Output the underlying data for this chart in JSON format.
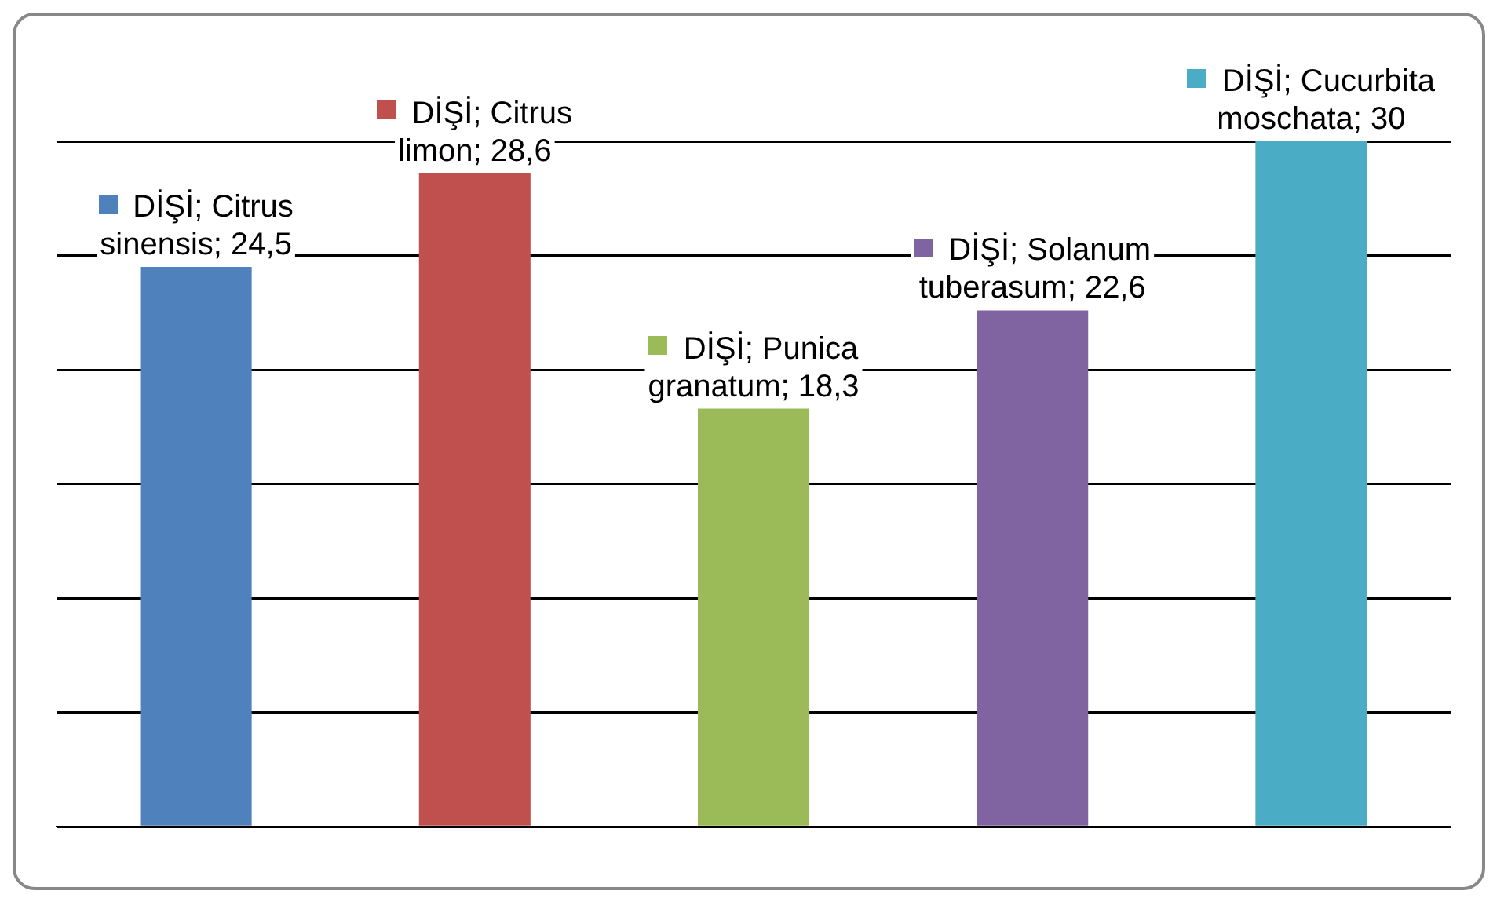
{
  "chart_data": {
    "type": "bar",
    "categories": [
      null,
      null,
      null,
      null,
      null
    ],
    "values": [
      24.5,
      28.6,
      18.3,
      22.6,
      30
    ],
    "colors": [
      "#4f81bd",
      "#c0504d",
      "#9bbb59",
      "#8064a2",
      "#4bacc6"
    ],
    "value_labels": [
      "DİŞİ; Citrus sinensis; 24,5",
      "DİŞİ; Citrus limon; 28,6",
      "DİŞİ; Punica granatum; 18,3",
      "DİŞİ; Solanum tuberasum; 22,6",
      "DİŞİ; Cucurbita moschata; 30"
    ],
    "ylim": [
      0,
      30
    ],
    "yticks": [
      {
        "value": 0,
        "label": null
      },
      {
        "value": 5,
        "label": null
      },
      {
        "value": 10,
        "label": null
      },
      {
        "value": 15,
        "label": null
      },
      {
        "value": 20,
        "label": null
      },
      {
        "value": 25,
        "label": null
      },
      {
        "value": 30,
        "label": null
      }
    ],
    "grid": "y",
    "legend": false
  }
}
